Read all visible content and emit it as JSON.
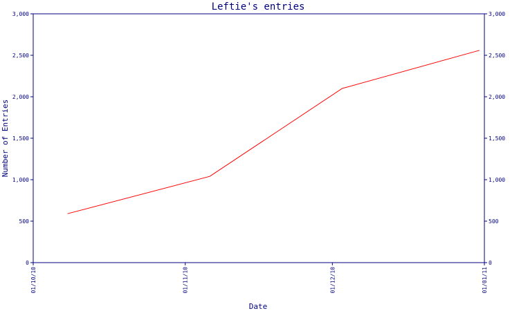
{
  "chart_data": {
    "type": "line",
    "title": "Leftie's entries",
    "xlabel": "Date",
    "ylabel": "Number of Entries",
    "x_tick_labels": [
      "01/10/10",
      "01/11/10",
      "01/12/10",
      "01/01/11"
    ],
    "x_ticks": [
      "2010-10-01",
      "2010-11-01",
      "2010-12-01",
      "2011-01-01"
    ],
    "xlim": [
      "2010-10-01",
      "2011-01-01"
    ],
    "y_tick_labels": [
      "0",
      "500",
      "1,000",
      "1,500",
      "2,000",
      "2,500",
      "3,000"
    ],
    "y_ticks": [
      0,
      500,
      1000,
      1500,
      2000,
      2500,
      3000
    ],
    "ylim": [
      0,
      3000
    ],
    "right_axis_mirrors_left": true,
    "grid": false,
    "series": [
      {
        "color": "#ff0000",
        "points": [
          {
            "x": "2010-10-08",
            "y": 590
          },
          {
            "x": "2010-11-06",
            "y": 1040
          },
          {
            "x": "2010-12-03",
            "y": 2100
          },
          {
            "x": "2010-12-31",
            "y": 2560
          }
        ]
      }
    ]
  },
  "colors": {
    "axis": "#00007f",
    "text": "#00007f",
    "line": "#ff0000",
    "background": "#ffffff"
  }
}
